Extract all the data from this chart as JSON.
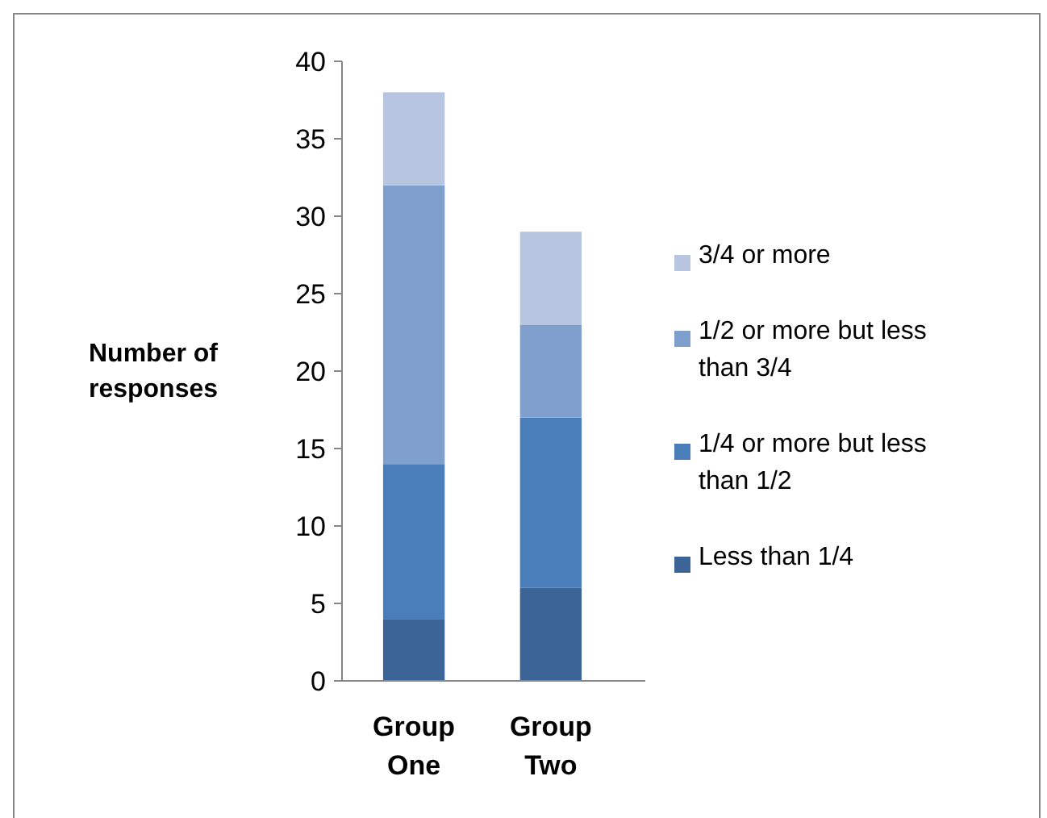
{
  "chart_data": {
    "type": "bar",
    "stacked": true,
    "ylabel": "Number of responses",
    "categories": [
      "Group One",
      "Group Two"
    ],
    "series": [
      {
        "name": "Less than 1/4",
        "color": "#3c6497",
        "values": [
          4,
          6
        ]
      },
      {
        "name": "1/4 or more but less than 1/2",
        "color": "#4a7ebb",
        "values": [
          10,
          11
        ]
      },
      {
        "name": "1/2 or more but less than 3/4",
        "color": "#7f9fcd",
        "values": [
          18,
          6
        ]
      },
      {
        "name": "3/4 or more",
        "color": "#b7c5e1",
        "values": [
          6,
          6
        ]
      }
    ],
    "ylim": [
      0,
      40
    ],
    "yticks": [
      0,
      5,
      10,
      15,
      20,
      25,
      30,
      35,
      40
    ],
    "grid": false,
    "legend": "right"
  }
}
